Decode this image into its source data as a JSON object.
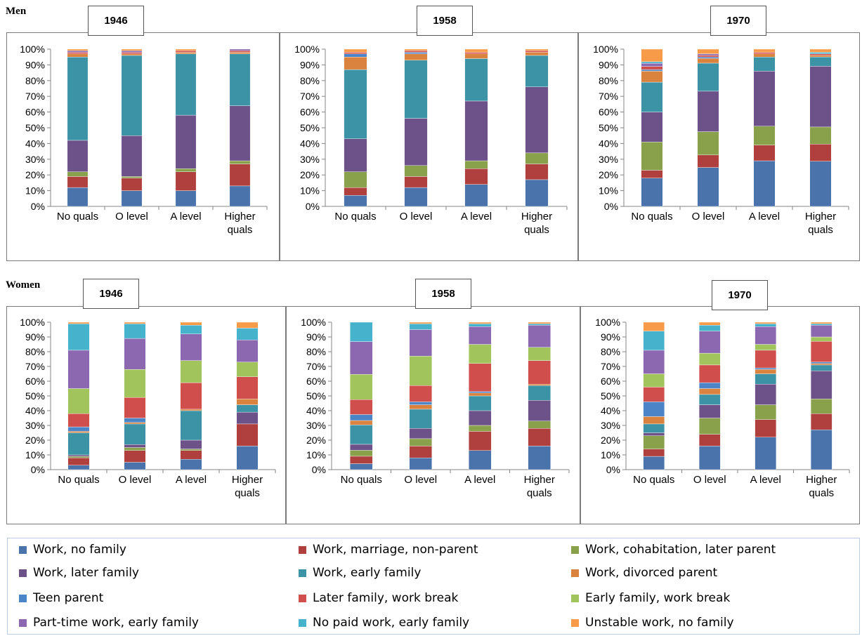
{
  "rows": [
    {
      "label": "Men"
    },
    {
      "label": "Women"
    }
  ],
  "legend": [
    {
      "label": "Work, no family",
      "color": "#4a73ab"
    },
    {
      "label": "Work, marriage, non-parent",
      "color": "#b0403e"
    },
    {
      "label": "Work, cohabitation, later parent",
      "color": "#89a14a"
    },
    {
      "label": "Work, later family",
      "color": "#6d5189"
    },
    {
      "label": "Work, early family",
      "color": "#3b93a5"
    },
    {
      "label": "Work, divorced parent",
      "color": "#d9833f"
    },
    {
      "label": "Teen parent",
      "color": "#4c84c8"
    },
    {
      "label": "Later family, work break",
      "color": "#d04e4b"
    },
    {
      "label": "Early family, work break",
      "color": "#a2c45c"
    },
    {
      "label": "Part-time work, early family",
      "color": "#8c68b0"
    },
    {
      "label": "No paid work, early family",
      "color": "#46b2cc"
    },
    {
      "label": "Unstable work, no family",
      "color": "#f79b49"
    }
  ],
  "chart_data": [
    {
      "type": "bar",
      "stacked": true,
      "title": "1946",
      "group": "Men",
      "categories": [
        "No quals",
        "O level",
        "A level",
        "Higher quals"
      ],
      "ylim": [
        0,
        100
      ],
      "yticks": [
        "0%",
        "10%",
        "20%",
        "30%",
        "40%",
        "50%",
        "60%",
        "70%",
        "80%",
        "90%",
        "100%"
      ],
      "series": [
        {
          "name": "Work, no family",
          "values": [
            12,
            10,
            10,
            13
          ]
        },
        {
          "name": "Work, marriage, non-parent",
          "values": [
            7,
            8,
            12,
            14
          ]
        },
        {
          "name": "Work, cohabitation, later parent",
          "values": [
            3,
            1,
            2,
            2
          ]
        },
        {
          "name": "Work, later family",
          "values": [
            20,
            26,
            34,
            35
          ]
        },
        {
          "name": "Work, early family",
          "values": [
            53,
            51,
            39,
            33
          ]
        },
        {
          "name": "Work, divorced parent",
          "values": [
            2,
            1,
            1,
            1
          ]
        },
        {
          "name": "Teen parent",
          "values": [
            0,
            0,
            0,
            0
          ]
        },
        {
          "name": "Later family, work break",
          "values": [
            1,
            1,
            1,
            1
          ]
        },
        {
          "name": "Early family, work break",
          "values": [
            0,
            0,
            0,
            0
          ]
        },
        {
          "name": "Part-time work, early family",
          "values": [
            1,
            1,
            0,
            1
          ]
        },
        {
          "name": "No paid work, early family",
          "values": [
            0,
            0,
            0,
            0
          ]
        },
        {
          "name": "Unstable work, no family",
          "values": [
            1,
            1,
            1,
            0
          ]
        }
      ]
    },
    {
      "type": "bar",
      "stacked": true,
      "title": "1958",
      "group": "Men",
      "categories": [
        "No quals",
        "O level",
        "A level",
        "Higher quals"
      ],
      "ylim": [
        0,
        100
      ],
      "yticks": [
        "0%",
        "10%",
        "20%",
        "30%",
        "40%",
        "50%",
        "60%",
        "70%",
        "80%",
        "90%",
        "100%"
      ],
      "series": [
        {
          "name": "Work, no family",
          "values": [
            7,
            12,
            14,
            17
          ]
        },
        {
          "name": "Work, marriage, non-parent",
          "values": [
            5,
            7,
            10,
            10
          ]
        },
        {
          "name": "Work, cohabitation, later parent",
          "values": [
            10,
            7,
            5,
            7
          ]
        },
        {
          "name": "Work, later family",
          "values": [
            21,
            30,
            38,
            42
          ]
        },
        {
          "name": "Work, early family",
          "values": [
            44,
            37,
            27,
            20
          ]
        },
        {
          "name": "Work, divorced parent",
          "values": [
            8,
            4,
            3,
            2
          ]
        },
        {
          "name": "Teen parent",
          "values": [
            2,
            1,
            0,
            0
          ]
        },
        {
          "name": "Later family, work break",
          "values": [
            1,
            1,
            1,
            1
          ]
        },
        {
          "name": "Early family, work break",
          "values": [
            0,
            0,
            0,
            0
          ]
        },
        {
          "name": "Part-time work, early family",
          "values": [
            0,
            0,
            0,
            0
          ]
        },
        {
          "name": "No paid work, early family",
          "values": [
            0,
            0,
            0,
            0
          ]
        },
        {
          "name": "Unstable work, no family",
          "values": [
            2,
            1,
            2,
            1
          ]
        }
      ]
    },
    {
      "type": "bar",
      "stacked": true,
      "title": "1970",
      "group": "Men",
      "categories": [
        "No quals",
        "O level",
        "A level",
        "Higher quals"
      ],
      "ylim": [
        0,
        100
      ],
      "yticks": [
        "0%",
        "10%",
        "20%",
        "30%",
        "40%",
        "50%",
        "60%",
        "70%",
        "80%",
        "90%",
        "100%"
      ],
      "series": [
        {
          "name": "Work, no family",
          "values": [
            18,
            25,
            29,
            29
          ]
        },
        {
          "name": "Work, marriage, non-parent",
          "values": [
            5,
            8,
            10,
            11
          ]
        },
        {
          "name": "Work, cohabitation, later parent",
          "values": [
            18,
            15,
            12,
            11
          ]
        },
        {
          "name": "Work, later family",
          "values": [
            19,
            26,
            35,
            39
          ]
        },
        {
          "name": "Work, early family",
          "values": [
            19,
            18,
            9,
            6
          ]
        },
        {
          "name": "Work, divorced parent",
          "values": [
            7,
            3,
            2,
            1
          ]
        },
        {
          "name": "Teen parent",
          "values": [
            1,
            1,
            0,
            0
          ]
        },
        {
          "name": "Later family, work break",
          "values": [
            2,
            1,
            1,
            1
          ]
        },
        {
          "name": "Early family, work break",
          "values": [
            0,
            0,
            0,
            0
          ]
        },
        {
          "name": "Part-time work, early family",
          "values": [
            2,
            1,
            0,
            0
          ]
        },
        {
          "name": "No paid work, early family",
          "values": [
            1,
            0,
            0,
            1
          ]
        },
        {
          "name": "Unstable work, no family",
          "values": [
            8,
            3,
            2,
            2
          ]
        }
      ]
    },
    {
      "type": "bar",
      "stacked": true,
      "title": "1946",
      "group": "Women",
      "categories": [
        "No quals",
        "O level",
        "A level",
        "Higher quals"
      ],
      "ylim": [
        0,
        100
      ],
      "yticks": [
        "0%",
        "10%",
        "20%",
        "30%",
        "40%",
        "50%",
        "60%",
        "70%",
        "80%",
        "90%",
        "100%"
      ],
      "series": [
        {
          "name": "Work, no family",
          "values": [
            3,
            5,
            7,
            16
          ]
        },
        {
          "name": "Work, marriage, non-parent",
          "values": [
            5,
            8,
            6,
            15
          ]
        },
        {
          "name": "Work, cohabitation, later parent",
          "values": [
            1,
            2,
            1,
            0
          ]
        },
        {
          "name": "Work, later family",
          "values": [
            1,
            2,
            6,
            8
          ]
        },
        {
          "name": "Work, early family",
          "values": [
            15,
            14,
            20,
            5
          ]
        },
        {
          "name": "Work, divorced parent",
          "values": [
            1,
            1,
            1,
            4
          ]
        },
        {
          "name": "Teen parent",
          "values": [
            3,
            3,
            0,
            0
          ]
        },
        {
          "name": "Later family, work break",
          "values": [
            9,
            14,
            18,
            15
          ]
        },
        {
          "name": "Early family, work break",
          "values": [
            17,
            19,
            15,
            10
          ]
        },
        {
          "name": "Part-time work, early family",
          "values": [
            26,
            21,
            18,
            15
          ]
        },
        {
          "name": "No paid work, early family",
          "values": [
            18,
            10,
            6,
            8
          ]
        },
        {
          "name": "Unstable work, no family",
          "values": [
            1,
            1,
            2,
            4
          ]
        }
      ]
    },
    {
      "type": "bar",
      "stacked": true,
      "title": "1958",
      "group": "Women",
      "categories": [
        "No quals",
        "O level",
        "A level",
        "Higher quals"
      ],
      "ylim": [
        0,
        100
      ],
      "yticks": [
        "0%",
        "10%",
        "20%",
        "30%",
        "40%",
        "50%",
        "60%",
        "70%",
        "80%",
        "90%",
        "100%"
      ],
      "series": [
        {
          "name": "Work, no family",
          "values": [
            4,
            8,
            13,
            16
          ]
        },
        {
          "name": "Work, marriage, non-parent",
          "values": [
            5,
            8,
            13,
            12
          ]
        },
        {
          "name": "Work, cohabitation, later parent",
          "values": [
            4,
            5,
            4,
            5
          ]
        },
        {
          "name": "Work, later family",
          "values": [
            4,
            7,
            10,
            14
          ]
        },
        {
          "name": "Work, early family",
          "values": [
            13,
            13,
            10,
            10
          ]
        },
        {
          "name": "Work, divorced parent",
          "values": [
            3,
            3,
            2,
            1
          ]
        },
        {
          "name": "Teen parent",
          "values": [
            4,
            2,
            1,
            0
          ]
        },
        {
          "name": "Later family, work break",
          "values": [
            10,
            11,
            19,
            16
          ]
        },
        {
          "name": "Early family, work break",
          "values": [
            17,
            20,
            13,
            9
          ]
        },
        {
          "name": "Part-time work, early family",
          "values": [
            22,
            18,
            12,
            15
          ]
        },
        {
          "name": "No paid work, early family",
          "values": [
            13,
            4,
            2,
            1
          ]
        },
        {
          "name": "Unstable work, no family",
          "values": [
            0,
            1,
            1,
            1
          ]
        }
      ]
    },
    {
      "type": "bar",
      "stacked": true,
      "title": "1970",
      "group": "Women",
      "categories": [
        "No quals",
        "O level",
        "A level",
        "Higher quals"
      ],
      "ylim": [
        0,
        100
      ],
      "yticks": [
        "0%",
        "10%",
        "20%",
        "30%",
        "40%",
        "50%",
        "60%",
        "70%",
        "80%",
        "90%",
        "100%"
      ],
      "series": [
        {
          "name": "Work, no family",
          "values": [
            9,
            16,
            22,
            27
          ]
        },
        {
          "name": "Work, marriage, non-parent",
          "values": [
            5,
            8,
            12,
            11
          ]
        },
        {
          "name": "Work, cohabitation, later parent",
          "values": [
            9,
            11,
            10,
            10
          ]
        },
        {
          "name": "Work, later family",
          "values": [
            2,
            9,
            14,
            19
          ]
        },
        {
          "name": "Work, early family",
          "values": [
            6,
            7,
            7,
            4
          ]
        },
        {
          "name": "Work, divorced parent",
          "values": [
            5,
            4,
            3,
            1
          ]
        },
        {
          "name": "Teen parent",
          "values": [
            10,
            4,
            1,
            1
          ]
        },
        {
          "name": "Later family, work break",
          "values": [
            10,
            12,
            12,
            14
          ]
        },
        {
          "name": "Early family, work break",
          "values": [
            9,
            8,
            4,
            3
          ]
        },
        {
          "name": "Part-time work, early family",
          "values": [
            16,
            15,
            12,
            8
          ]
        },
        {
          "name": "No paid work, early family",
          "values": [
            13,
            4,
            2,
            1
          ]
        },
        {
          "name": "Unstable work, no family",
          "values": [
            6,
            2,
            1,
            1
          ]
        }
      ]
    }
  ]
}
